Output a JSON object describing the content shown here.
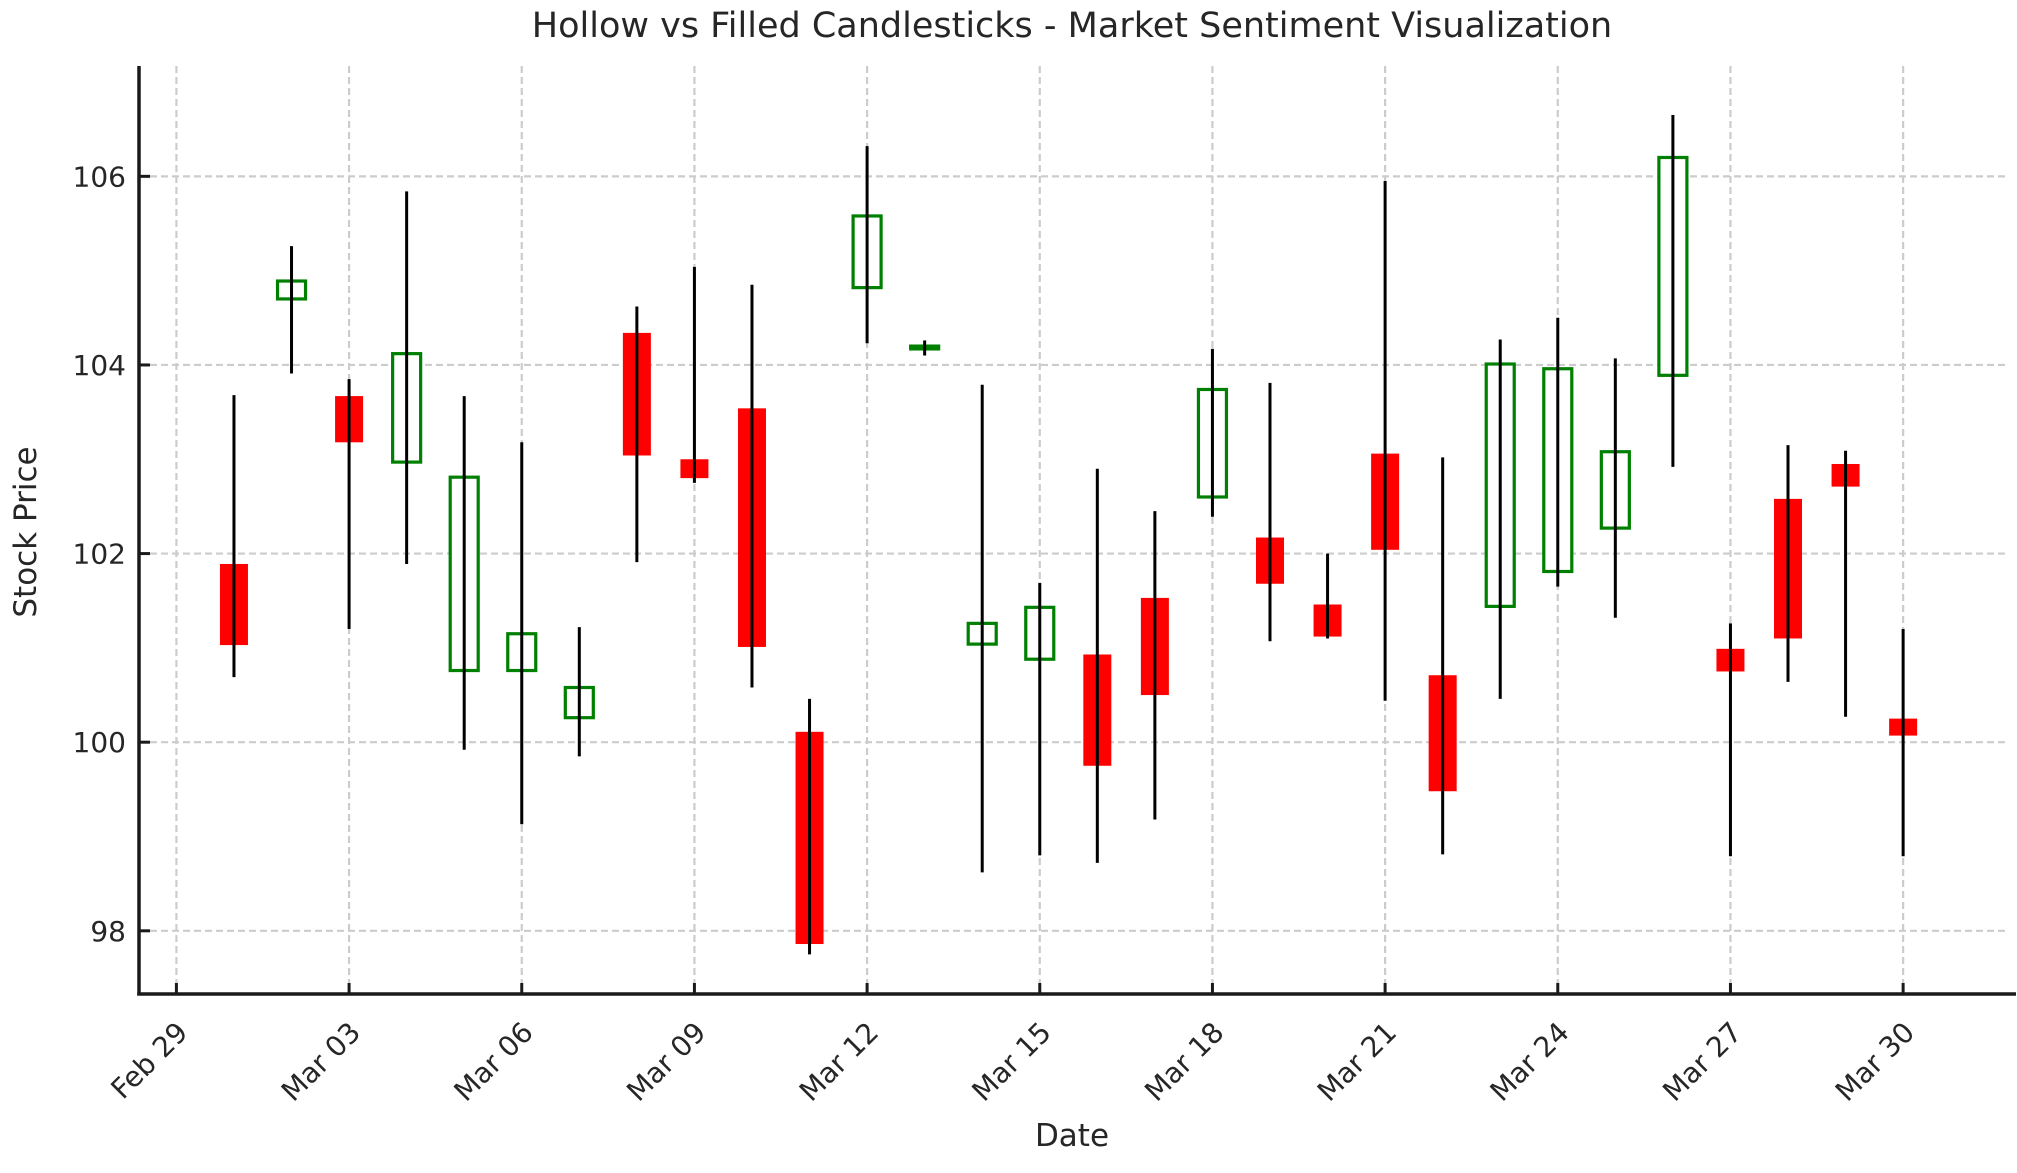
{
  "chart_data": {
    "type": "candlestick",
    "title": "Hollow vs Filled Candlesticks - Market Sentiment Visualization",
    "xlabel": "Date",
    "ylabel": "Stock Price",
    "grid": true,
    "legend": "none",
    "style": {
      "up_body": "hollow",
      "down_body": "filled",
      "up_color": "#008000",
      "down_color": "#ff0000",
      "hollow_fill": "#ffffff",
      "wick_color": "#000000",
      "grid_color": "#cccccc",
      "spine_color": "#1a1a1a",
      "text_color": "#262626",
      "background": "#ffffff"
    },
    "y_axis": {
      "ticks": [
        98,
        100,
        102,
        104,
        106
      ],
      "ylim": [
        97.33,
        107.17
      ]
    },
    "x_axis": {
      "tick_labels": [
        "Feb 29",
        "Mar 03",
        "Mar 06",
        "Mar 09",
        "Mar 12",
        "Mar 15",
        "Mar 18",
        "Mar 21",
        "Mar 24",
        "Mar 27",
        "Mar 30"
      ],
      "tick_days": [
        0,
        3,
        6,
        9,
        12,
        15,
        18,
        21,
        24,
        27,
        30
      ],
      "xlim_days": [
        -0.65,
        31.77
      ],
      "label_rotation_deg": 45
    },
    "candles": [
      {
        "date": "Mar 01",
        "day": 1,
        "open": 101.89,
        "high": 103.68,
        "low": 100.69,
        "close": 101.03,
        "sentiment": "bearish-filled"
      },
      {
        "date": "Mar 02",
        "day": 2,
        "open": 104.7,
        "high": 105.26,
        "low": 103.91,
        "close": 104.89,
        "sentiment": "bullish-hollow"
      },
      {
        "date": "Mar 03",
        "day": 3,
        "open": 103.67,
        "high": 103.85,
        "low": 101.2,
        "close": 103.18,
        "sentiment": "bearish-filled"
      },
      {
        "date": "Mar 04",
        "day": 4,
        "open": 102.97,
        "high": 105.84,
        "low": 101.89,
        "close": 104.12,
        "sentiment": "bullish-hollow"
      },
      {
        "date": "Mar 05",
        "day": 5,
        "open": 100.76,
        "high": 103.67,
        "low": 99.92,
        "close": 102.81,
        "sentiment": "bullish-hollow"
      },
      {
        "date": "Mar 06",
        "day": 6,
        "open": 100.76,
        "high": 103.18,
        "low": 99.13,
        "close": 101.15,
        "sentiment": "bullish-hollow"
      },
      {
        "date": "Mar 07",
        "day": 7,
        "open": 100.26,
        "high": 101.22,
        "low": 99.85,
        "close": 100.58,
        "sentiment": "bullish-hollow"
      },
      {
        "date": "Mar 08",
        "day": 8,
        "open": 104.34,
        "high": 104.62,
        "low": 101.91,
        "close": 103.04,
        "sentiment": "bearish-filled"
      },
      {
        "date": "Mar 09",
        "day": 9,
        "open": 103.0,
        "high": 105.04,
        "low": 102.75,
        "close": 102.8,
        "sentiment": "bearish-filled"
      },
      {
        "date": "Mar 10",
        "day": 10,
        "open": 103.54,
        "high": 104.85,
        "low": 100.58,
        "close": 101.01,
        "sentiment": "bearish-filled"
      },
      {
        "date": "Mar 11",
        "day": 11,
        "open": 100.11,
        "high": 100.46,
        "low": 97.75,
        "close": 97.86,
        "sentiment": "bearish-filled"
      },
      {
        "date": "Mar 12",
        "day": 12,
        "open": 104.82,
        "high": 106.32,
        "low": 104.23,
        "close": 105.58,
        "sentiment": "bullish-hollow"
      },
      {
        "date": "Mar 13",
        "day": 13,
        "open": 104.17,
        "high": 104.26,
        "low": 104.1,
        "close": 104.2,
        "sentiment": "bullish-hollow"
      },
      {
        "date": "Mar 14",
        "day": 14,
        "open": 101.04,
        "high": 103.79,
        "low": 98.62,
        "close": 101.26,
        "sentiment": "bullish-hollow"
      },
      {
        "date": "Mar 15",
        "day": 15,
        "open": 100.88,
        "high": 101.69,
        "low": 98.8,
        "close": 101.43,
        "sentiment": "bullish-hollow"
      },
      {
        "date": "Mar 16",
        "day": 16,
        "open": 100.93,
        "high": 102.9,
        "low": 98.72,
        "close": 99.75,
        "sentiment": "bearish-filled"
      },
      {
        "date": "Mar 17",
        "day": 17,
        "open": 101.53,
        "high": 102.45,
        "low": 99.18,
        "close": 100.5,
        "sentiment": "bearish-filled"
      },
      {
        "date": "Mar 18",
        "day": 18,
        "open": 102.6,
        "high": 104.17,
        "low": 102.39,
        "close": 103.74,
        "sentiment": "bullish-hollow"
      },
      {
        "date": "Mar 19",
        "day": 19,
        "open": 102.17,
        "high": 103.81,
        "low": 101.07,
        "close": 101.68,
        "sentiment": "bearish-filled"
      },
      {
        "date": "Mar 20",
        "day": 20,
        "open": 101.46,
        "high": 102.0,
        "low": 101.1,
        "close": 101.12,
        "sentiment": "bearish-filled"
      },
      {
        "date": "Mar 21",
        "day": 21,
        "open": 103.06,
        "high": 105.95,
        "low": 100.44,
        "close": 102.04,
        "sentiment": "bearish-filled"
      },
      {
        "date": "Mar 22",
        "day": 22,
        "open": 100.71,
        "high": 103.02,
        "low": 98.81,
        "close": 99.48,
        "sentiment": "bearish-filled"
      },
      {
        "date": "Mar 23",
        "day": 23,
        "open": 101.44,
        "high": 104.27,
        "low": 100.46,
        "close": 104.01,
        "sentiment": "bullish-hollow"
      },
      {
        "date": "Mar 24",
        "day": 24,
        "open": 101.81,
        "high": 104.5,
        "low": 101.65,
        "close": 103.96,
        "sentiment": "bullish-hollow"
      },
      {
        "date": "Mar 25",
        "day": 25,
        "open": 102.27,
        "high": 104.07,
        "low": 101.32,
        "close": 103.08,
        "sentiment": "bullish-hollow"
      },
      {
        "date": "Mar 26",
        "day": 26,
        "open": 103.89,
        "high": 106.65,
        "low": 102.92,
        "close": 106.2,
        "sentiment": "bullish-hollow"
      },
      {
        "date": "Mar 27",
        "day": 27,
        "open": 100.99,
        "high": 101.26,
        "low": 98.79,
        "close": 100.75,
        "sentiment": "bearish-filled"
      },
      {
        "date": "Mar 28",
        "day": 28,
        "open": 102.58,
        "high": 103.15,
        "low": 100.64,
        "close": 101.1,
        "sentiment": "bearish-filled"
      },
      {
        "date": "Mar 29",
        "day": 29,
        "open": 102.95,
        "high": 103.09,
        "low": 100.27,
        "close": 102.71,
        "sentiment": "bearish-filled"
      },
      {
        "date": "Mar 30",
        "day": 30,
        "open": 100.25,
        "high": 101.2,
        "low": 98.79,
        "close": 100.07,
        "sentiment": "bearish-filled"
      }
    ]
  }
}
